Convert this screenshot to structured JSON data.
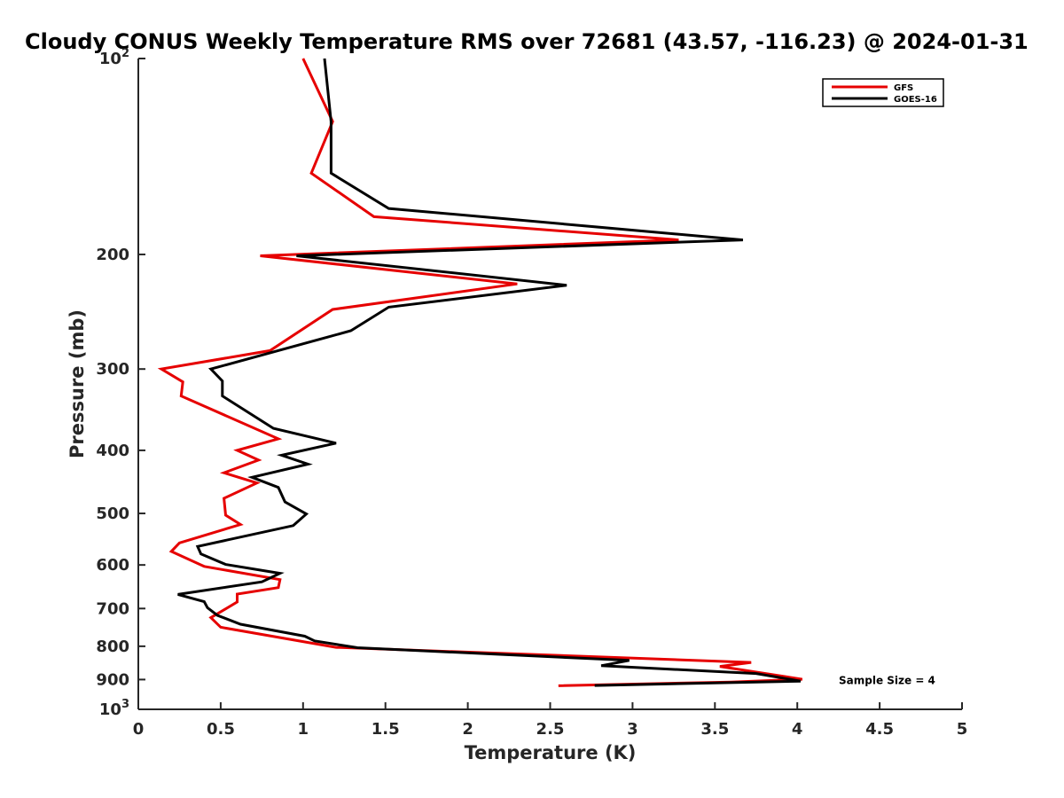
{
  "chart_data": {
    "type": "line",
    "title": "Cloudy CONUS Weekly Temperature RMS over 72681 (43.57, -116.23) @ 2024-01-31",
    "xlabel": "Temperature (K)",
    "ylabel": "Pressure (mb)",
    "xlim": [
      0,
      5
    ],
    "ylim": [
      100,
      1000
    ],
    "y_scale": "log",
    "y_reversed": true,
    "grid": false,
    "legend_position": "top-right",
    "x_ticks": [
      {
        "value": 0,
        "label": "0"
      },
      {
        "value": 0.5,
        "label": "0.5"
      },
      {
        "value": 1,
        "label": "1"
      },
      {
        "value": 1.5,
        "label": "1.5"
      },
      {
        "value": 2,
        "label": "2"
      },
      {
        "value": 2.5,
        "label": "2.5"
      },
      {
        "value": 3,
        "label": "3"
      },
      {
        "value": 3.5,
        "label": "3.5"
      },
      {
        "value": 4,
        "label": "4"
      },
      {
        "value": 4.5,
        "label": "4.5"
      },
      {
        "value": 5,
        "label": "5"
      }
    ],
    "y_ticks": [
      {
        "value": 100,
        "base": "10",
        "exp": "2"
      },
      {
        "value": 200,
        "label": "200"
      },
      {
        "value": 300,
        "label": "300"
      },
      {
        "value": 400,
        "label": "400"
      },
      {
        "value": 500,
        "label": "500"
      },
      {
        "value": 600,
        "label": "600"
      },
      {
        "value": 700,
        "label": "700"
      },
      {
        "value": 800,
        "label": "800"
      },
      {
        "value": 900,
        "label": "900"
      },
      {
        "value": 1000,
        "base": "10",
        "exp": "3"
      }
    ],
    "annotation": "Sample Size = 4",
    "series": [
      {
        "name": "GFS",
        "color": "#e60000",
        "points": [
          [
            1.0,
            100
          ],
          [
            1.18,
            125
          ],
          [
            1.05,
            150
          ],
          [
            1.43,
            175
          ],
          [
            3.28,
            190
          ],
          [
            0.74,
            201
          ],
          [
            2.3,
            222
          ],
          [
            1.18,
            243
          ],
          [
            0.8,
            281
          ],
          [
            0.14,
            300
          ],
          [
            0.27,
            314
          ],
          [
            0.26,
            330
          ],
          [
            0.85,
            384
          ],
          [
            0.6,
            400
          ],
          [
            0.73,
            414
          ],
          [
            0.52,
            433
          ],
          [
            0.72,
            449
          ],
          [
            0.52,
            474
          ],
          [
            0.53,
            503
          ],
          [
            0.62,
            520
          ],
          [
            0.25,
            555
          ],
          [
            0.2,
            572
          ],
          [
            0.4,
            603
          ],
          [
            0.86,
            632
          ],
          [
            0.85,
            650
          ],
          [
            0.6,
            665
          ],
          [
            0.6,
            684
          ],
          [
            0.44,
            723
          ],
          [
            0.5,
            748
          ],
          [
            1.2,
            803
          ],
          [
            3.72,
            847
          ],
          [
            3.53,
            859
          ],
          [
            4.03,
            899
          ],
          [
            3.6,
            908
          ],
          [
            2.55,
            920
          ]
        ]
      },
      {
        "name": "GOES-16",
        "color": "#000000",
        "points": [
          [
            1.13,
            100
          ],
          [
            1.17,
            125
          ],
          [
            1.17,
            150
          ],
          [
            1.52,
            170
          ],
          [
            3.67,
            190
          ],
          [
            0.96,
            201
          ],
          [
            2.6,
            223
          ],
          [
            1.52,
            241
          ],
          [
            1.29,
            262
          ],
          [
            0.44,
            300
          ],
          [
            0.51,
            313
          ],
          [
            0.51,
            330
          ],
          [
            0.82,
            370
          ],
          [
            1.2,
            390
          ],
          [
            0.87,
            407
          ],
          [
            1.03,
            420
          ],
          [
            0.69,
            440
          ],
          [
            0.85,
            456
          ],
          [
            0.89,
            480
          ],
          [
            1.02,
            501
          ],
          [
            0.94,
            522
          ],
          [
            0.36,
            562
          ],
          [
            0.38,
            577
          ],
          [
            0.53,
            599
          ],
          [
            0.86,
            618
          ],
          [
            0.75,
            637
          ],
          [
            0.24,
            666
          ],
          [
            0.4,
            683
          ],
          [
            0.42,
            698
          ],
          [
            0.48,
            717
          ],
          [
            0.62,
            740
          ],
          [
            1.01,
            772
          ],
          [
            1.07,
            785
          ],
          [
            1.33,
            804
          ],
          [
            2.98,
            841
          ],
          [
            2.81,
            857
          ],
          [
            3.75,
            881
          ],
          [
            4.02,
            905
          ],
          [
            2.77,
            919
          ]
        ]
      }
    ]
  }
}
